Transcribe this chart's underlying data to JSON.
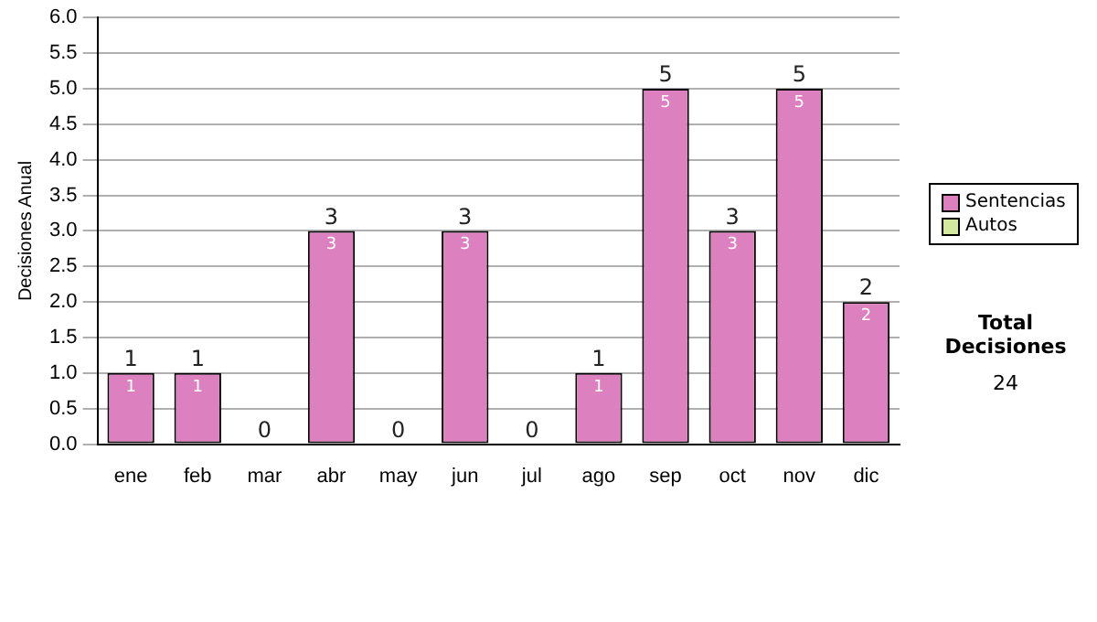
{
  "chart_data": {
    "type": "bar",
    "stacked": true,
    "ylabel": "Decisiones Anual",
    "categories": [
      "ene",
      "feb",
      "mar",
      "abr",
      "may",
      "jun",
      "jul",
      "ago",
      "sep",
      "oct",
      "nov",
      "dic"
    ],
    "series": [
      {
        "name": "Sentencias",
        "color": "#dd80c0",
        "values": [
          1,
          1,
          0,
          3,
          0,
          3,
          0,
          1,
          5,
          3,
          5,
          2
        ],
        "value_labels": [
          "1",
          "1",
          null,
          "3",
          null,
          "3",
          null,
          "1",
          "5",
          "3",
          "5",
          "2"
        ]
      },
      {
        "name": "Autos",
        "color": "#d4e8a0",
        "values": [
          0,
          0,
          0,
          0,
          0,
          0,
          0,
          0,
          0,
          0,
          0,
          0
        ]
      }
    ],
    "totals": [
      "1",
      "1",
      "0",
      "3",
      "0",
      "3",
      "0",
      "1",
      "5",
      "3",
      "5",
      "2"
    ],
    "ylim": [
      0,
      6
    ],
    "yticks": [
      {
        "value": 0,
        "label": "0.0"
      },
      {
        "value": 0.5,
        "label": "0.5"
      },
      {
        "value": 1,
        "label": "1.0"
      },
      {
        "value": 1.5,
        "label": "1.5"
      },
      {
        "value": 2,
        "label": "2.0"
      },
      {
        "value": 2.5,
        "label": "2.5"
      },
      {
        "value": 3,
        "label": "3.0"
      },
      {
        "value": 3.5,
        "label": "3.5"
      },
      {
        "value": 4,
        "label": "4.0"
      },
      {
        "value": 4.5,
        "label": "4.5"
      },
      {
        "value": 5,
        "label": "5.0"
      },
      {
        "value": 5.5,
        "label": "5.5"
      },
      {
        "value": 6,
        "label": "6.0"
      }
    ],
    "grid": "y",
    "legend": "right",
    "annotations": [
      "Total Decisiones",
      "24"
    ]
  }
}
